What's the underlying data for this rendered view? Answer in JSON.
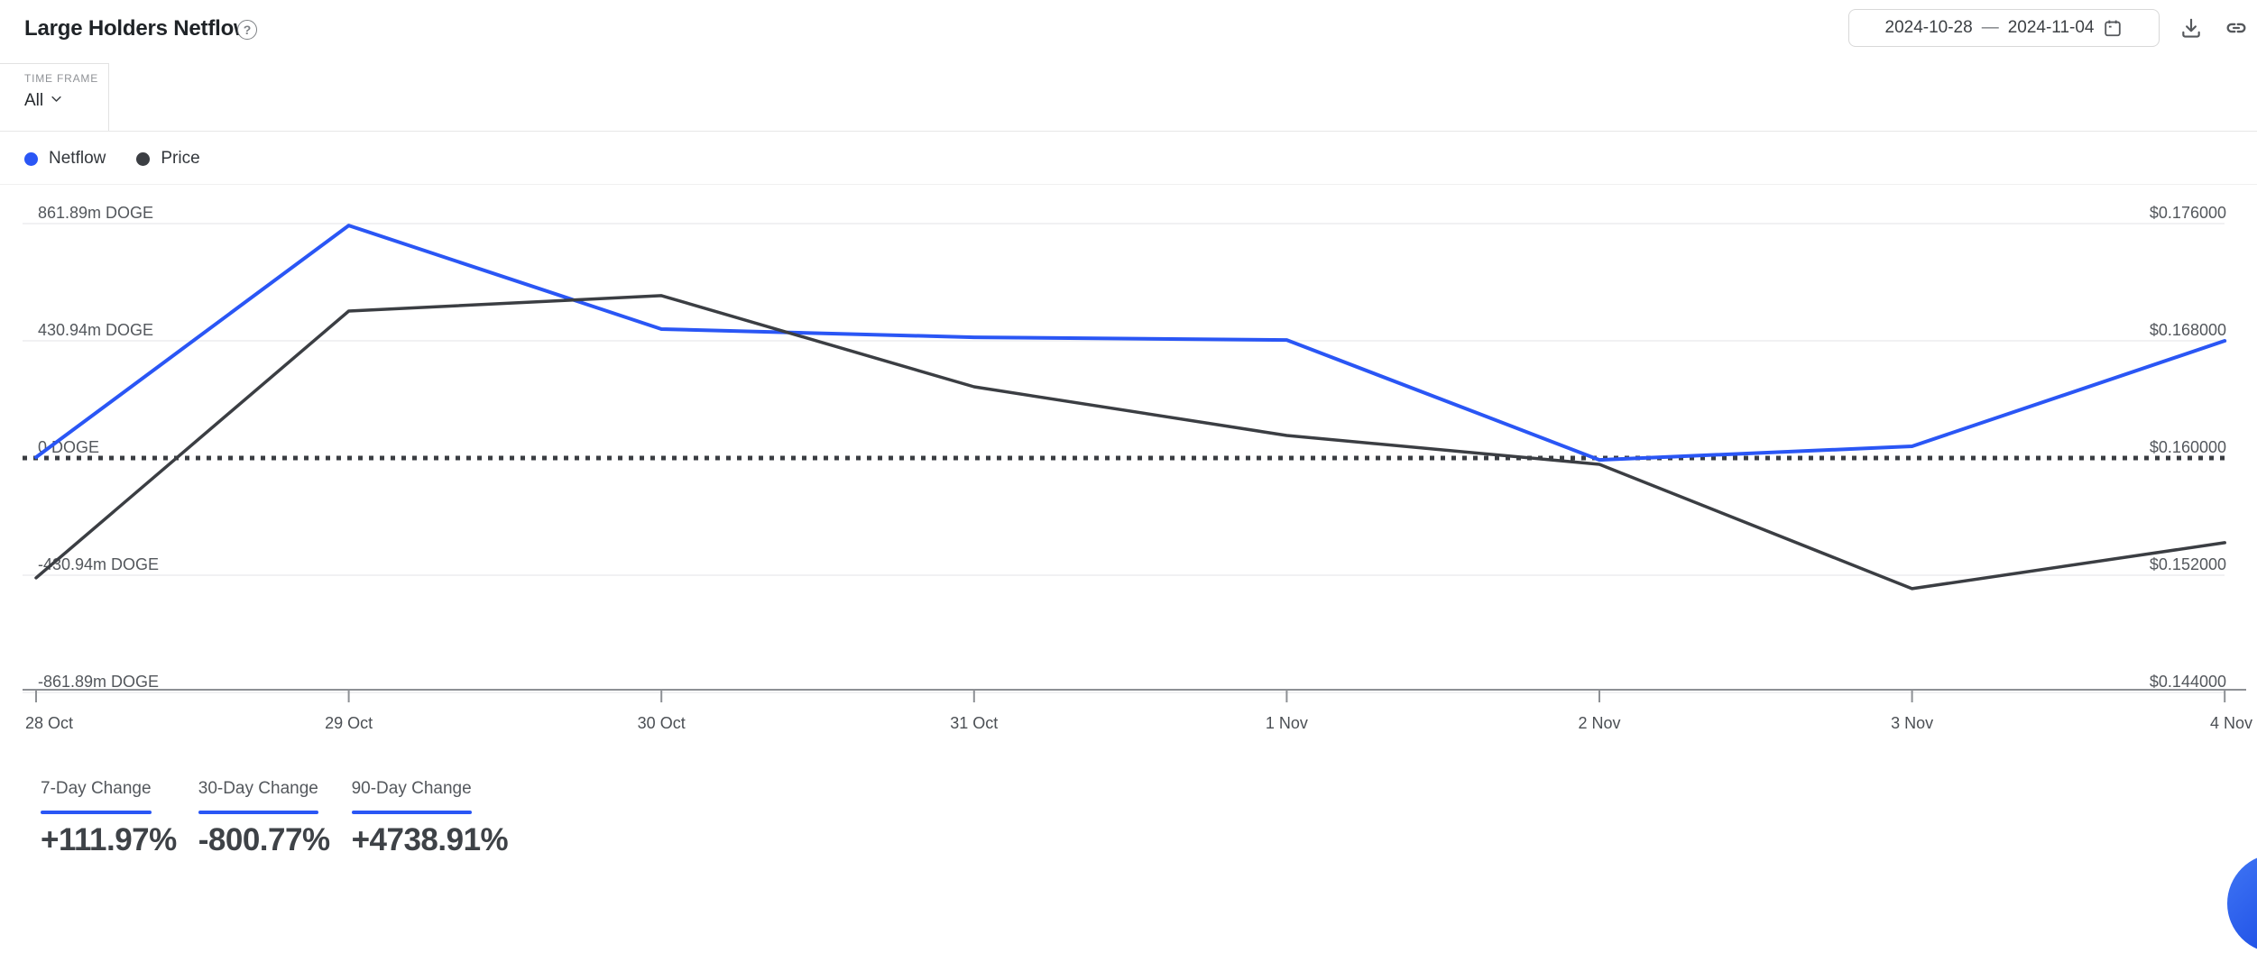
{
  "header": {
    "title": "Large Holders Netflow",
    "help_symbol": "?",
    "date_range": {
      "start": "2024-10-28",
      "separator": "—",
      "end": "2024-11-04"
    }
  },
  "toolbar": {
    "time_frame_label": "TIME FRAME",
    "time_frame_value": "All"
  },
  "legend": [
    {
      "label": "Netflow",
      "color": "#2a56f5"
    },
    {
      "label": "Price",
      "color": "#3b3e43"
    }
  ],
  "chart_data": {
    "type": "line",
    "x": [
      "28 Oct",
      "29 Oct",
      "30 Oct",
      "31 Oct",
      "1 Nov",
      "2 Nov",
      "3 Nov",
      "4 Nov"
    ],
    "series": [
      {
        "name": "Netflow",
        "axis": "left",
        "unit": "million DOGE",
        "color": "#2a56f5",
        "values": [
          3,
          855,
          474,
          444,
          434,
          -7,
          43,
          431
        ]
      },
      {
        "name": "Price",
        "axis": "right",
        "unit": "USD",
        "color": "#3b3e43",
        "values": [
          0.15182,
          0.17003,
          0.17108,
          0.16486,
          0.16154,
          0.15957,
          0.15108,
          0.15422
        ]
      }
    ],
    "left_axis": {
      "ticks": [
        "861.89m DOGE",
        "430.94m DOGE",
        "0 DOGE",
        "-430.94m DOGE",
        "-861.89m DOGE"
      ],
      "tick_values_million": [
        861.89,
        430.945,
        0,
        -430.945,
        -861.89
      ],
      "range_million": [
        -861.89,
        861.89
      ],
      "zero_line_style": "dotted"
    },
    "right_axis": {
      "ticks": [
        "$0.176000",
        "$0.168000",
        "$0.160000",
        "$0.152000",
        "$0.144000"
      ],
      "tick_values": [
        0.176,
        0.168,
        0.16,
        0.152,
        0.144
      ],
      "range": [
        0.144,
        0.176
      ]
    },
    "grid": true,
    "legend_position": "top-left"
  },
  "stats": [
    {
      "label": "7-Day Change",
      "value": "+111.97%"
    },
    {
      "label": "30-Day Change",
      "value": "-800.77%"
    },
    {
      "label": "90-Day Change",
      "value": "+4738.91%"
    }
  ],
  "colors": {
    "accent": "#2a56f5",
    "price_line": "#3b3e43",
    "grid_line": "#f1f1f3",
    "axis_line": "#8d9094",
    "axis_text": "#53575c",
    "chat_bubble": "#2f62ec"
  }
}
